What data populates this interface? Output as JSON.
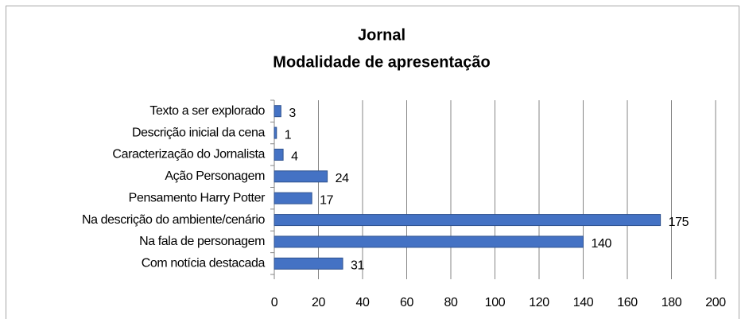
{
  "chart_data": {
    "type": "bar",
    "orientation": "horizontal",
    "title": "Jornal",
    "subtitle": "Modalidade de apresentação",
    "categories": [
      "Texto a ser explorado",
      "Descrição inicial da cena",
      "Caracterização do Jornalista",
      "Ação Personagem",
      "Pensamento Harry Potter",
      "Na descrição do ambiente/cenário",
      "Na fala de personagem",
      "Com notícia destacada"
    ],
    "values": [
      3,
      1,
      4,
      24,
      17,
      175,
      140,
      31
    ],
    "color": "#4472c4",
    "xlim": [
      0,
      200
    ],
    "xticks": [
      0,
      20,
      40,
      60,
      80,
      100,
      120,
      140,
      160,
      180,
      200
    ],
    "grid": true
  }
}
